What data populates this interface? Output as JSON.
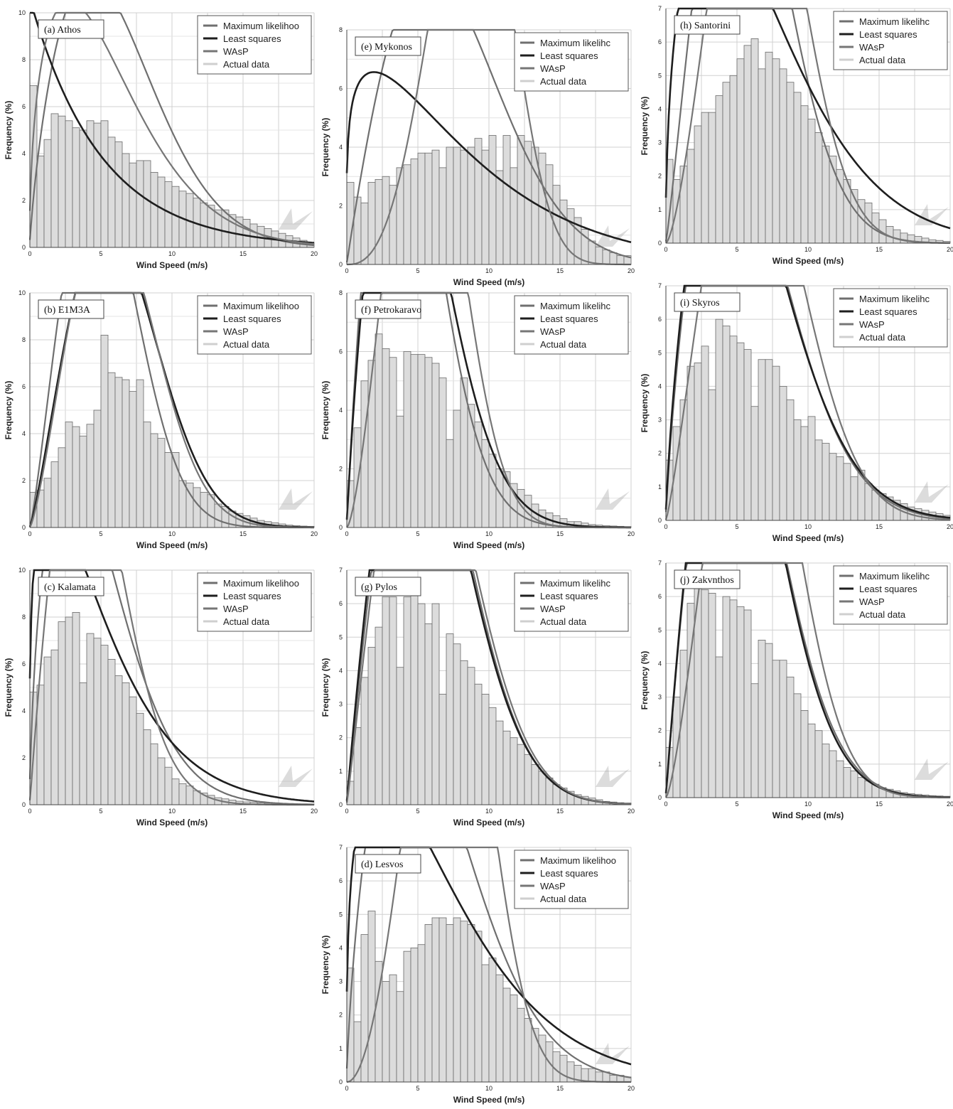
{
  "figure": {
    "legend_labels": [
      "Maximum likelihood",
      "Least squares",
      "WAsP",
      "Actual data"
    ],
    "xlabel": "Wind Speed (m/s)",
    "ylabel": "Frequency (%)",
    "colors": {
      "max_likelihood": "#6f6f6f",
      "least_squares": "#1e1e1e",
      "wasp": "#767676",
      "actual_data": "#cfcfcf",
      "bar_fill": "#dcdcdc",
      "bar_stroke": "#6a6a6a",
      "grid": "#d0d0d0"
    }
  },
  "chart_data": [
    {
      "type": "bar",
      "station": "(a) Athos",
      "xlabel": "Wind Speed (m/s)",
      "ylabel": "Frequency (%)",
      "xlim": [
        0,
        20
      ],
      "ylim": [
        0,
        10
      ],
      "xticks": [
        0,
        5,
        10,
        15,
        20
      ],
      "yticks": [
        0,
        2,
        4,
        6,
        8,
        10
      ],
      "grid": true,
      "legend_position": "top-right",
      "bin_width": 0.5,
      "legend_labels": [
        "Maximum likelihoo",
        "Least squares",
        "WAsP",
        "Actual data"
      ],
      "bars": [
        6.9,
        3.9,
        4.6,
        5.7,
        5.6,
        5.4,
        5.1,
        5.0,
        5.4,
        5.3,
        5.4,
        4.7,
        4.5,
        4.0,
        3.6,
        3.7,
        3.7,
        3.2,
        3.0,
        2.8,
        2.6,
        2.4,
        2.3,
        2.1,
        1.9,
        1.8,
        1.6,
        1.6,
        1.4,
        1.3,
        1.2,
        1.0,
        0.9,
        0.8,
        0.7,
        0.6,
        0.5,
        0.4,
        0.3,
        0.2
      ],
      "series": [
        {
          "name": "Maximum likelihoo",
          "dist": "weibull",
          "k": 1.75,
          "c": 6.9,
          "scale": 1.0
        },
        {
          "name": "Least squares",
          "dist": "weibull",
          "k": 1.0,
          "c": 5.0,
          "scale": 0.53
        },
        {
          "name": "WAsP",
          "dist": "weibull",
          "k": 1.45,
          "c": 6.2,
          "scale": 0.88
        }
      ]
    },
    {
      "type": "bar",
      "station": "(b) E1M3A",
      "xlabel": "Wind Speed (m/s)",
      "ylabel": "Frequency (%)",
      "xlim": [
        0,
        20
      ],
      "ylim": [
        0,
        10
      ],
      "xticks": [
        0,
        5,
        10,
        15,
        20
      ],
      "yticks": [
        0,
        2,
        4,
        6,
        8,
        10
      ],
      "grid": true,
      "legend_position": "top-right",
      "bin_width": 0.5,
      "legend_labels": [
        "Maximum likelihoo",
        "Least squares",
        "WAsP",
        "Actual data"
      ],
      "bars": [
        1.5,
        1.6,
        2.1,
        2.8,
        3.4,
        4.5,
        4.3,
        3.9,
        4.4,
        5.0,
        8.2,
        6.6,
        6.4,
        6.3,
        5.8,
        6.3,
        4.5,
        4.0,
        3.8,
        3.2,
        3.2,
        2.0,
        1.9,
        1.7,
        1.5,
        1.4,
        1.0,
        0.9,
        0.7,
        0.6,
        0.5,
        0.4,
        0.3,
        0.25,
        0.2,
        0.15,
        0.1,
        0.08,
        0.06,
        0.05
      ],
      "series": [
        {
          "name": "Maximum likelihoo",
          "dist": "weibull",
          "k": 2.2,
          "c": 6.0,
          "scale": 1.0
        },
        {
          "name": "Least squares",
          "dist": "weibull",
          "k": 2.2,
          "c": 7.1,
          "scale": 1.0
        },
        {
          "name": "WAsP",
          "dist": "weibull",
          "k": 2.3,
          "c": 7.0,
          "scale": 1.0
        }
      ]
    },
    {
      "type": "bar",
      "station": "(c) Kalamata",
      "xlabel": "Wind Speed (m/s)",
      "ylabel": "Frequency (%)",
      "xlim": [
        0,
        20
      ],
      "ylim": [
        0,
        10
      ],
      "xticks": [
        0,
        5,
        10,
        15,
        20
      ],
      "yticks": [
        0,
        2,
        4,
        6,
        8,
        10
      ],
      "grid": true,
      "legend_position": "top-right",
      "bin_width": 0.5,
      "legend_labels": [
        "Maximum likelihoo",
        "Least squares",
        "WAsP",
        "Actual data"
      ],
      "bars": [
        4.8,
        5.1,
        6.3,
        6.6,
        7.8,
        8.0,
        8.2,
        5.2,
        7.3,
        7.1,
        6.8,
        6.2,
        5.5,
        5.2,
        4.6,
        3.9,
        3.2,
        2.6,
        2.0,
        1.6,
        1.1,
        0.9,
        0.8,
        0.6,
        0.5,
        0.4,
        0.3,
        0.25,
        0.2,
        0.15,
        0.12,
        0.1,
        0.08,
        0.06,
        0.05,
        0.04,
        0.03,
        0.02,
        0.02,
        0.01
      ],
      "series": [
        {
          "name": "Maximum likelihoo",
          "dist": "weibull",
          "k": 1.6,
          "c": 5.2,
          "scale": 1.0
        },
        {
          "name": "Least squares",
          "dist": "weibull",
          "k": 1.25,
          "c": 5.2,
          "scale": 0.9
        },
        {
          "name": "WAsP",
          "dist": "weibull",
          "k": 1.95,
          "c": 5.2,
          "scale": 1.0
        }
      ]
    },
    {
      "type": "bar",
      "station": "(d) Lesvos",
      "xlabel": "Wind Speed (m/s)",
      "ylabel": "Frequency (%)",
      "xlim": [
        0,
        20
      ],
      "ylim": [
        0,
        7
      ],
      "xticks": [
        0,
        5,
        10,
        15,
        20
      ],
      "yticks": [
        0,
        1,
        2,
        3,
        4,
        5,
        6,
        7
      ],
      "grid": true,
      "legend_position": "top-right",
      "bin_width": 0.5,
      "legend_labels": [
        "Maximum likelihoo",
        "Least squares",
        "WAsP",
        "Actual data"
      ],
      "bars": [
        3.4,
        1.8,
        4.4,
        5.1,
        3.6,
        3.0,
        3.2,
        2.7,
        3.9,
        4.0,
        4.1,
        4.7,
        4.9,
        4.9,
        4.7,
        4.9,
        4.8,
        4.7,
        4.5,
        3.5,
        3.7,
        3.2,
        2.8,
        2.6,
        2.2,
        1.9,
        1.6,
        1.4,
        1.2,
        0.9,
        0.8,
        0.6,
        0.5,
        0.4,
        0.4,
        0.3,
        0.3,
        0.2,
        0.2,
        0.15
      ],
      "series": [
        {
          "name": "Maximum likelihoo",
          "dist": "weibull",
          "k": 1.7,
          "c": 7.0,
          "scale": 1.0
        },
        {
          "name": "Least squares",
          "dist": "weibull",
          "k": 1.3,
          "c": 7.3,
          "scale": 0.89
        },
        {
          "name": "WAsP",
          "dist": "weibull",
          "k": 3.0,
          "c": 8.2,
          "scale": 1.0
        }
      ]
    },
    {
      "type": "bar",
      "station": "(e) Mykonos",
      "xlabel": "Wind Speed (m/s)",
      "ylabel": "Frequency (%)",
      "xlim": [
        0,
        20
      ],
      "ylim": [
        0,
        8
      ],
      "xticks": [
        0,
        5,
        10,
        15,
        20
      ],
      "yticks": [
        0,
        2,
        4,
        6,
        8
      ],
      "grid": true,
      "legend_position": "top-right",
      "bin_width": 0.5,
      "legend_labels": [
        "Maximum likelihc",
        "Least squares",
        "WAsP",
        "Actual data"
      ],
      "bars": [
        2.8,
        2.3,
        2.1,
        2.8,
        2.9,
        3.0,
        2.7,
        3.3,
        3.4,
        3.6,
        3.8,
        3.8,
        3.9,
        3.3,
        4.0,
        4.0,
        3.9,
        4.0,
        4.3,
        3.9,
        4.4,
        3.2,
        4.4,
        3.3,
        4.4,
        4.2,
        4.0,
        3.8,
        3.4,
        2.7,
        2.2,
        1.9,
        1.6,
        1.2,
        0.8,
        0.6,
        0.5,
        0.4,
        0.3,
        0.3
      ],
      "series": [
        {
          "name": "Maximum likelihc",
          "dist": "weibull",
          "k": 1.95,
          "c": 8.4,
          "scale": 1.0
        },
        {
          "name": "Least squares",
          "dist": "weibull",
          "k": 1.2,
          "c": 8.5,
          "scale": 0.74
        },
        {
          "name": "WAsP",
          "dist": "weibull",
          "k": 3.6,
          "c": 9.7,
          "scale": 1.0
        }
      ]
    },
    {
      "type": "bar",
      "station": "(f) Petrokaravo",
      "xlabel": "Wind Speed (m/s)",
      "ylabel": "Frequency (%)",
      "xlim": [
        0,
        20
      ],
      "ylim": [
        0,
        8
      ],
      "xticks": [
        0,
        5,
        10,
        15,
        20
      ],
      "yticks": [
        0,
        2,
        4,
        6,
        8
      ],
      "grid": true,
      "legend_position": "top-right",
      "bin_width": 0.5,
      "legend_labels": [
        "Maximum likelihc",
        "Least squares",
        "WAsP",
        "Actual data"
      ],
      "bars": [
        1.6,
        3.4,
        5.0,
        5.7,
        6.6,
        6.1,
        5.8,
        3.8,
        6.0,
        5.9,
        5.9,
        5.8,
        5.6,
        5.1,
        3.0,
        4.0,
        5.1,
        4.2,
        3.6,
        3.0,
        2.5,
        2.0,
        1.9,
        1.5,
        1.3,
        1.1,
        0.8,
        0.6,
        0.5,
        0.4,
        0.3,
        0.2,
        0.2,
        0.15,
        0.1,
        0.08,
        0.06,
        0.05,
        0.04,
        0.03
      ],
      "series": [
        {
          "name": "Maximum likelihc",
          "dist": "weibull",
          "k": 1.9,
          "c": 5.1,
          "scale": 1.0
        },
        {
          "name": "Least squares",
          "dist": "weibull",
          "k": 1.85,
          "c": 5.6,
          "scale": 1.0
        },
        {
          "name": "WAsP",
          "dist": "weibull",
          "k": 2.5,
          "c": 6.5,
          "scale": 1.0
        }
      ]
    },
    {
      "type": "bar",
      "station": "(g) Pylos",
      "xlabel": "Wind Speed (m/s)",
      "ylabel": "Frequency (%)",
      "xlim": [
        0,
        20
      ],
      "ylim": [
        0,
        7
      ],
      "xticks": [
        0,
        5,
        10,
        15,
        20
      ],
      "yticks": [
        0,
        1,
        2,
        3,
        4,
        5,
        6,
        7
      ],
      "grid": true,
      "legend_position": "top-right",
      "bin_width": 0.5,
      "legend_labels": [
        "Maximum likelihc",
        "Least squares",
        "WAsP",
        "Actual data"
      ],
      "bars": [
        0.7,
        2.3,
        3.8,
        4.7,
        5.3,
        6.2,
        6.2,
        4.1,
        6.2,
        6.4,
        6.0,
        5.4,
        6.0,
        3.3,
        5.1,
        4.8,
        4.3,
        4.1,
        3.6,
        3.3,
        2.9,
        2.5,
        2.2,
        2.0,
        1.8,
        1.5,
        1.2,
        1.0,
        0.8,
        0.6,
        0.5,
        0.4,
        0.3,
        0.25,
        0.2,
        0.15,
        0.1,
        0.08,
        0.06,
        0.05
      ],
      "series": [
        {
          "name": "Maximum likelihc",
          "dist": "weibull",
          "k": 2.0,
          "c": 6.8,
          "scale": 1.0
        },
        {
          "name": "Least squares",
          "dist": "weibull",
          "k": 1.95,
          "c": 6.7,
          "scale": 1.0
        },
        {
          "name": "WAsP",
          "dist": "weibull",
          "k": 2.05,
          "c": 7.0,
          "scale": 1.0
        }
      ]
    },
    {
      "type": "bar",
      "station": "(h) Santorini",
      "xlabel": "Wind Speed (m/s)",
      "ylabel": "Frequency (%)",
      "xlim": [
        0,
        20
      ],
      "ylim": [
        0,
        7
      ],
      "xticks": [
        0,
        5,
        10,
        15,
        20
      ],
      "yticks": [
        0,
        1,
        2,
        3,
        4,
        5,
        6,
        7
      ],
      "grid": true,
      "legend_position": "top-right",
      "bin_width": 0.5,
      "legend_labels": [
        "Maximum likelihc",
        "Least squares",
        "WAsP",
        "Actual data"
      ],
      "bars": [
        2.5,
        1.9,
        2.3,
        2.8,
        3.5,
        3.9,
        3.9,
        4.4,
        4.8,
        5.0,
        5.5,
        5.9,
        6.1,
        5.2,
        5.7,
        5.5,
        5.2,
        4.8,
        4.5,
        4.1,
        3.7,
        3.3,
        2.9,
        2.6,
        2.2,
        1.9,
        1.6,
        1.3,
        1.2,
        0.9,
        0.7,
        0.5,
        0.4,
        0.3,
        0.25,
        0.2,
        0.15,
        0.1,
        0.08,
        0.05
      ],
      "series": [
        {
          "name": "Maximum likelihc",
          "dist": "weibull",
          "k": 2.1,
          "c": 6.7,
          "scale": 1.0
        },
        {
          "name": "Least squares",
          "dist": "weibull",
          "k": 1.45,
          "c": 7.4,
          "scale": 0.99
        },
        {
          "name": "WAsP",
          "dist": "weibull",
          "k": 2.5,
          "c": 7.6,
          "scale": 1.0
        }
      ]
    },
    {
      "type": "bar",
      "station": "(i) Skyros",
      "xlabel": "Wind Speed (m/s)",
      "ylabel": "Frequency (%)",
      "xlim": [
        0,
        20
      ],
      "ylim": [
        0,
        7
      ],
      "xticks": [
        0,
        5,
        10,
        15,
        20
      ],
      "yticks": [
        0,
        1,
        2,
        3,
        4,
        5,
        6,
        7
      ],
      "grid": true,
      "legend_position": "top-right",
      "bin_width": 0.5,
      "legend_labels": [
        "Maximum likelihc",
        "Least squares",
        "WAsP",
        "Actual data"
      ],
      "bars": [
        1.8,
        2.8,
        3.6,
        4.6,
        4.7,
        5.2,
        3.9,
        6.0,
        5.8,
        5.5,
        5.3,
        5.1,
        3.4,
        4.8,
        4.8,
        4.6,
        4.0,
        3.6,
        3.0,
        2.8,
        3.1,
        2.4,
        2.3,
        2.0,
        1.9,
        1.7,
        1.3,
        1.5,
        1.1,
        0.9,
        0.8,
        0.7,
        0.6,
        0.5,
        0.4,
        0.35,
        0.3,
        0.25,
        0.2,
        0.15
      ],
      "series": [
        {
          "name": "Maximum likelihc",
          "dist": "weibull",
          "k": 1.8,
          "c": 6.8,
          "scale": 1.0
        },
        {
          "name": "Least squares",
          "dist": "weibull",
          "k": 1.75,
          "c": 6.8,
          "scale": 1.0
        },
        {
          "name": "WAsP",
          "dist": "weibull",
          "k": 2.2,
          "c": 7.6,
          "scale": 1.0
        }
      ]
    },
    {
      "type": "bar",
      "station": "(j) Zakvnthos",
      "xlabel": "Wind Speed (m/s)",
      "ylabel": "Frequency (%)",
      "xlim": [
        0,
        20
      ],
      "ylim": [
        0,
        7
      ],
      "xticks": [
        0,
        5,
        10,
        15,
        20
      ],
      "yticks": [
        0,
        1,
        2,
        3,
        4,
        5,
        6,
        7
      ],
      "grid": true,
      "legend_position": "top-right",
      "bin_width": 0.5,
      "legend_labels": [
        "Maximum likelihc",
        "Least squares",
        "WAsP",
        "Actual data"
      ],
      "bars": [
        1.5,
        3.0,
        4.4,
        5.8,
        6.4,
        6.2,
        6.1,
        4.2,
        6.0,
        5.9,
        5.7,
        5.6,
        3.4,
        4.7,
        4.6,
        4.1,
        4.1,
        3.6,
        3.1,
        2.6,
        2.2,
        2.0,
        1.6,
        1.4,
        1.1,
        0.9,
        0.8,
        0.6,
        0.5,
        0.4,
        0.3,
        0.25,
        0.2,
        0.15,
        0.12,
        0.1,
        0.08,
        0.06,
        0.05,
        0.04
      ],
      "series": [
        {
          "name": "Maximum likelihc",
          "dist": "weibull",
          "k": 1.95,
          "c": 6.4,
          "scale": 1.0
        },
        {
          "name": "Least squares",
          "dist": "weibull",
          "k": 1.95,
          "c": 6.3,
          "scale": 1.0
        },
        {
          "name": "WAsP",
          "dist": "weibull",
          "k": 2.4,
          "c": 7.3,
          "scale": 1.0
        }
      ]
    }
  ]
}
